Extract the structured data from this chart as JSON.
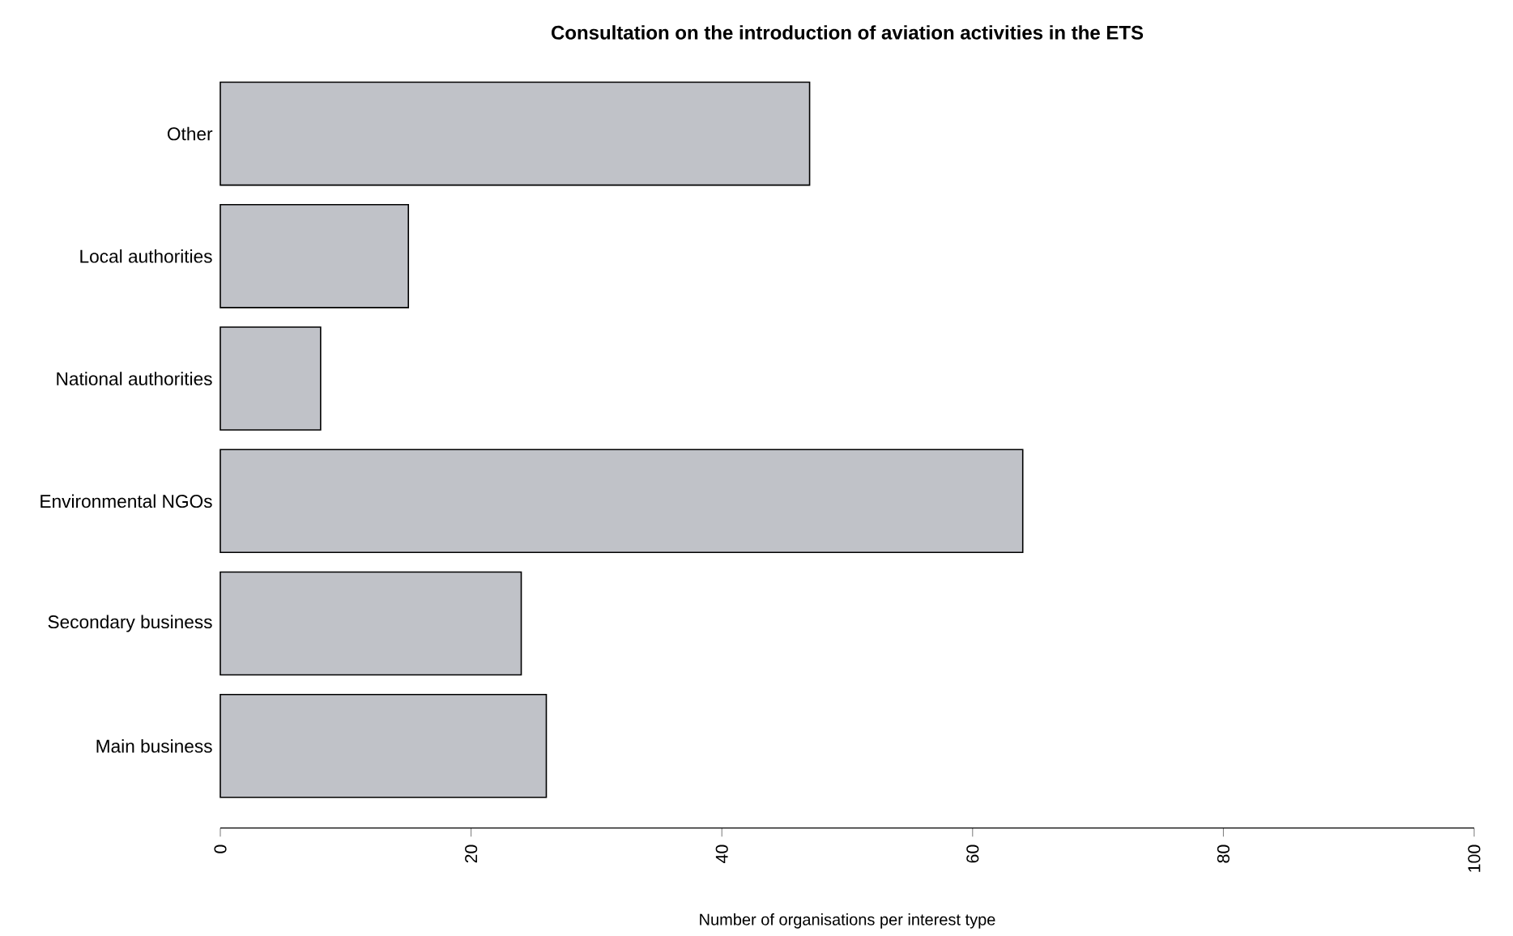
{
  "chart_data": {
    "type": "bar",
    "orientation": "horizontal",
    "title": "Consultation on the introduction of aviation activities in the ETS",
    "xlabel": "Number of organisations per interest type",
    "categories": [
      "Other",
      "Local authorities",
      "National authorities",
      "Environmental NGOs",
      "Secondary business",
      "Main business"
    ],
    "values": [
      47,
      15,
      8,
      64,
      24,
      26
    ],
    "color": "#c0c2c8",
    "xlim": [
      0,
      100
    ],
    "xticks": [
      0,
      20,
      40,
      60,
      80,
      100
    ]
  }
}
